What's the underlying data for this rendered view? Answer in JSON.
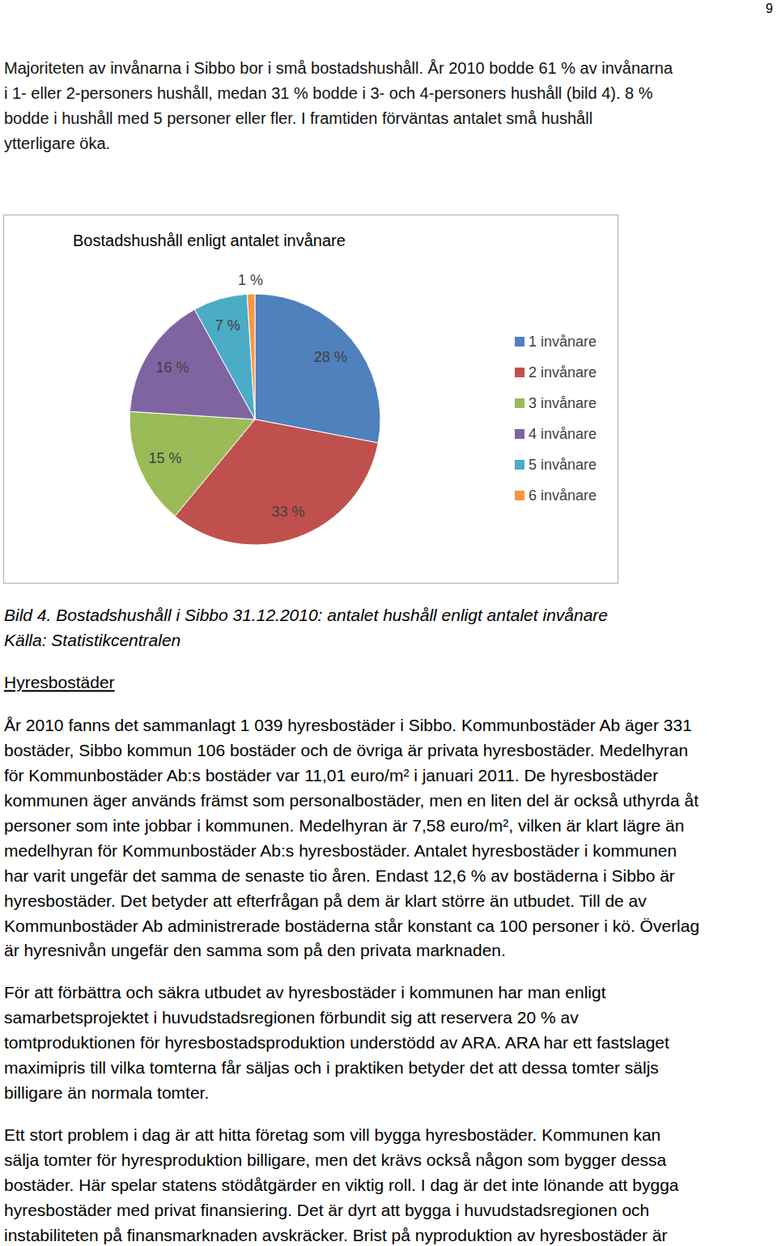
{
  "page_number": "9",
  "intro": {
    "lines": [
      "Majoriteten av invånarna i Sibbo bor i små bostadshushåll. År 2010 bodde 61 % av invånarna",
      "i 1- eller 2-personers hushåll, medan 31 % bodde i 3- och 4-personers hushåll (bild 4). 8 %",
      "bodde i hushåll med 5 personer eller fler. I framtiden förväntas antalet små hushåll",
      "ytterligare öka."
    ]
  },
  "chart_data": {
    "type": "pie",
    "title": "Bostadshushåll enligt antalet invånare",
    "categories": [
      "1 invånare",
      "2 invånare",
      "3 invånare",
      "4 invånare",
      "5 invånare",
      "6 invånare"
    ],
    "values": [
      28,
      33,
      15,
      16,
      7,
      1
    ],
    "value_labels": [
      "28 %",
      "33 %",
      "15 %",
      "16 %",
      "7 %",
      "1 %"
    ],
    "colors": [
      "#4f81bd",
      "#c0504d",
      "#9bbb59",
      "#8064a2",
      "#4bacc6",
      "#f79646"
    ],
    "data_labels": true,
    "legend": "right"
  },
  "caption": {
    "lines": [
      "Bild 4. Bostadshushåll i Sibbo 31.12.2010: antalet hushåll enligt antalet invånare",
      "Källa: Statistikcentralen"
    ]
  },
  "section": {
    "heading": "Hyresbostäder",
    "paragraphs": [
      {
        "lines": [
          "År 2010 fanns det sammanlagt 1 039 hyresbostäder i Sibbo. Kommunbostäder Ab äger 331",
          "bostäder, Sibbo kommun 106 bostäder och de övriga är privata hyresbostäder. Medelhyran",
          "för Kommunbostäder Ab:s bostäder var 11,01 euro/m² i januari 2011. De hyresbostäder",
          "kommunen äger används främst som personalbostäder, men en liten del är också uthyrda åt",
          "personer som inte jobbar i kommunen. Medelhyran är 7,58 euro/m², vilken är klart lägre än",
          "medelhyran för Kommunbostäder Ab:s hyresbostäder. Antalet hyresbostäder i kommunen",
          "har varit ungefär det samma de senaste tio åren. Endast 12,6 % av bostäderna i Sibbo är",
          "hyresbostäder. Det betyder att efterfrågan på dem är klart större än utbudet. Till de av",
          "Kommunbostäder Ab administrerade bostäderna står konstant ca 100 personer i kö. Överlag",
          "är hyresnivån ungefär den samma som på den privata marknaden."
        ]
      },
      {
        "lines": [
          "För att förbättra och säkra utbudet av hyresbostäder i kommunen har man enligt",
          "samarbetsprojektet i huvudstadsregionen förbundit sig att reservera 20 % av",
          "tomtproduktionen för hyresbostadsproduktion understödd av ARA. ARA har ett fastslaget",
          "maximipris till vilka tomterna får säljas och i praktiken betyder det att dessa tomter säljs",
          "billigare än normala tomter."
        ]
      },
      {
        "lines": [
          "Ett stort problem i dag är att hitta företag som vill bygga hyresbostäder. Kommunen kan",
          "sälja tomter för hyresproduktion billigare, men det krävs också någon som bygger dessa",
          "bostäder. Här spelar statens stödåtgärder en viktig roll. I dag är det inte lönande att bygga",
          "hyresbostäder med privat finansiering. Det är dyrt att bygga i huvudstadsregionen och",
          "instabiliteten på finansmarknaden avskräcker. Brist på nyproduktion av hyresbostäder är"
        ]
      }
    ]
  }
}
